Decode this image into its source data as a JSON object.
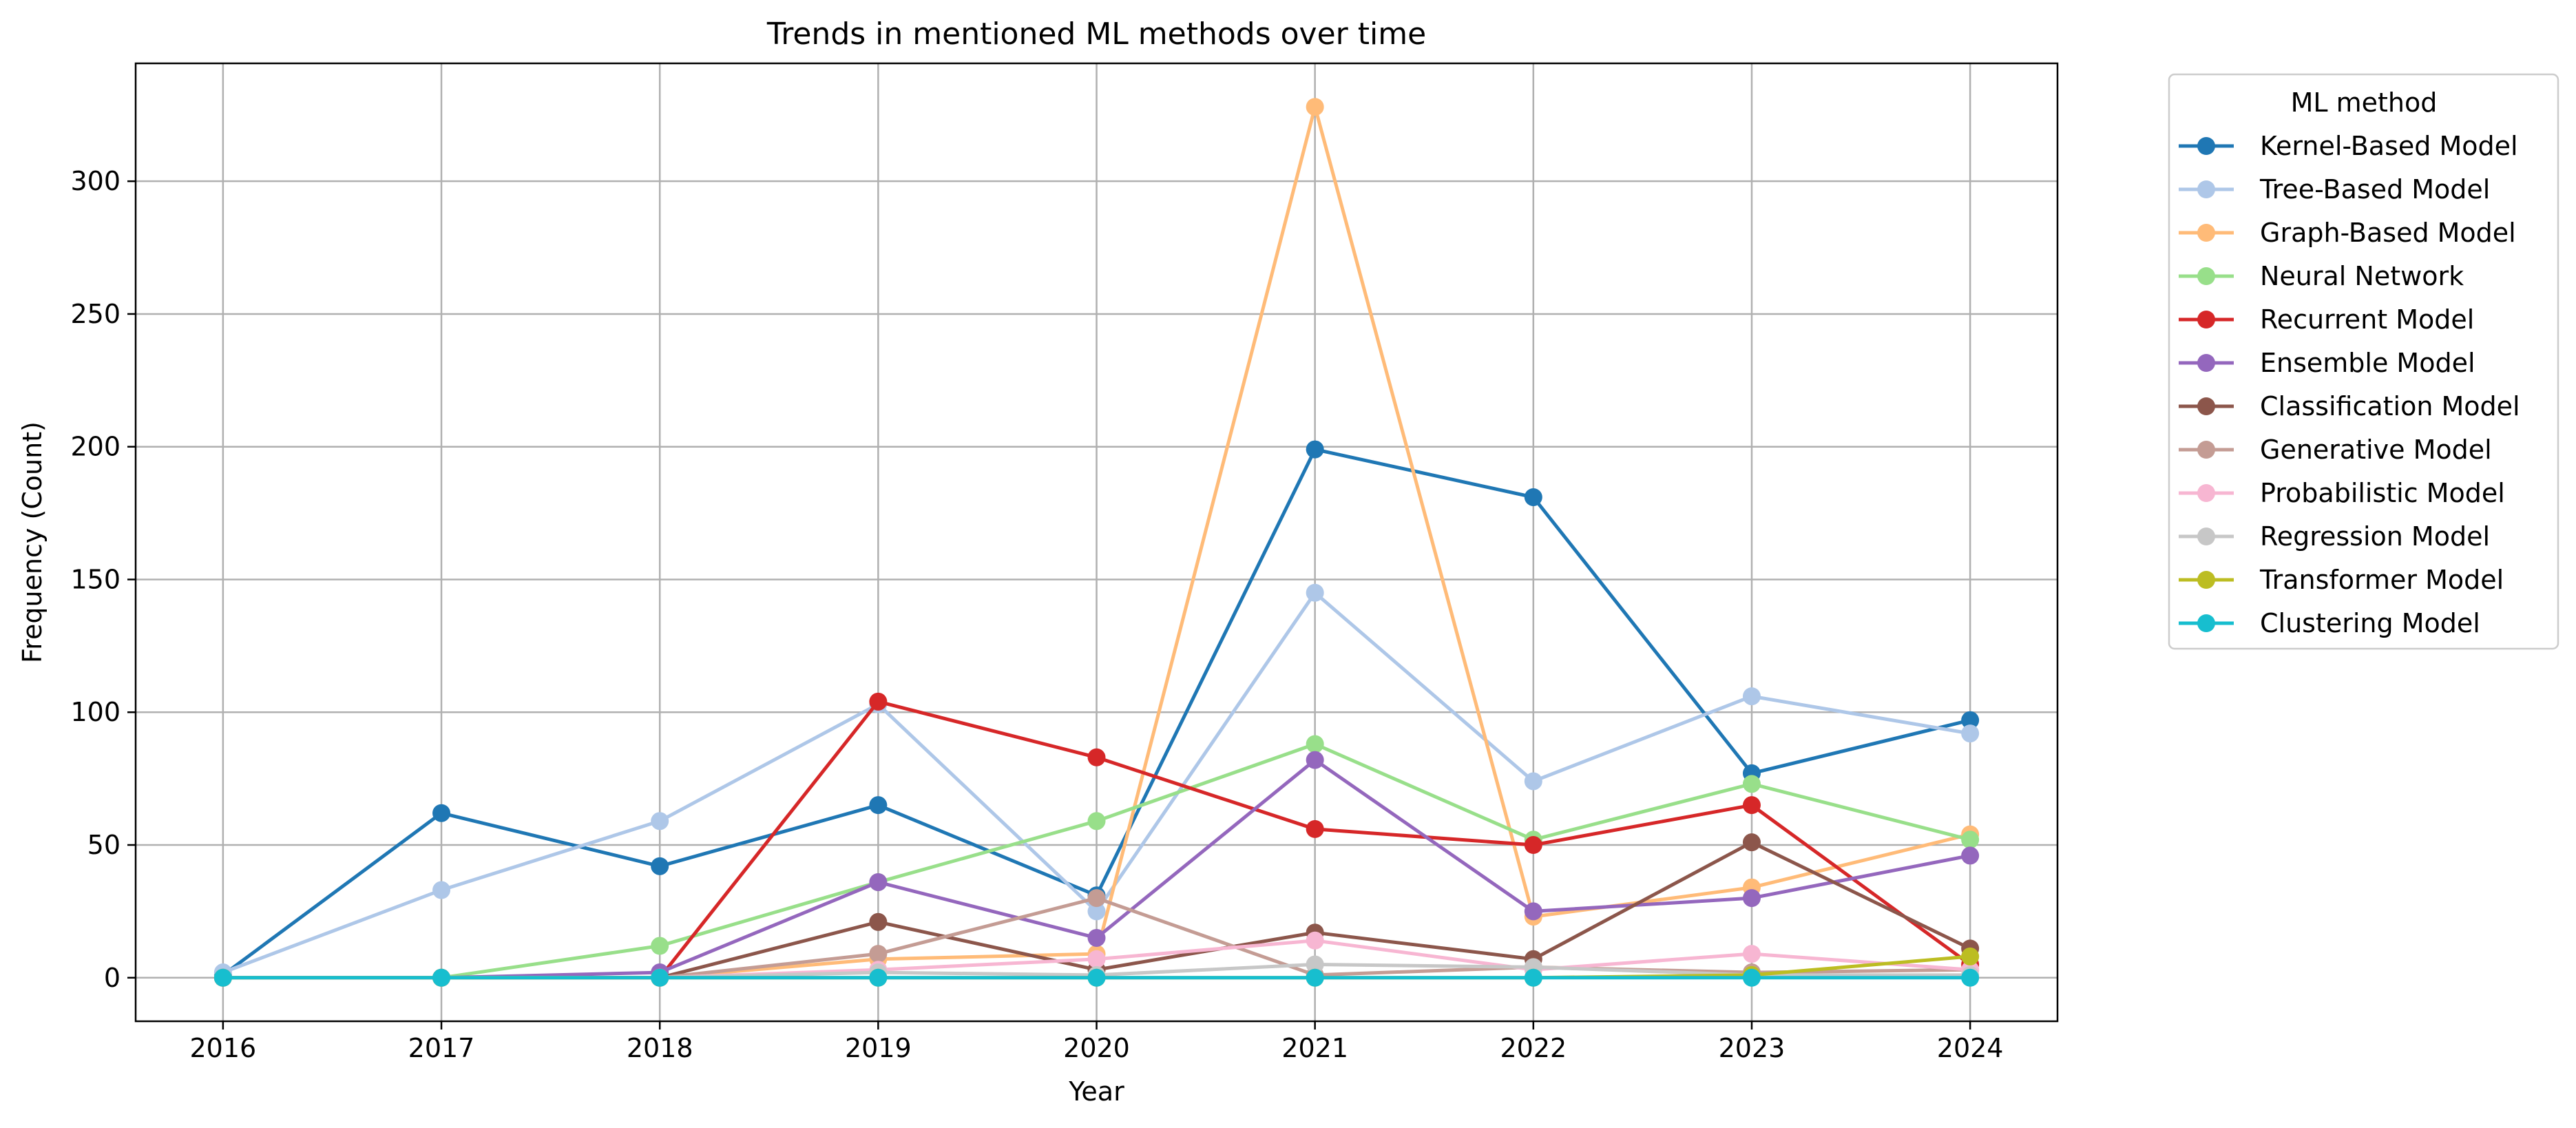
{
  "chart_data": {
    "type": "line",
    "title": "Trends in mentioned ML methods over time",
    "xlabel": "Year",
    "ylabel": "Frequency (Count)",
    "x": [
      2016,
      2017,
      2018,
      2019,
      2020,
      2021,
      2022,
      2023,
      2024
    ],
    "xlim": [
      2015.6,
      2024.4
    ],
    "ylim": [
      -16.4,
      344.4
    ],
    "yticks": [
      0,
      50,
      100,
      150,
      200,
      250,
      300
    ],
    "grid": true,
    "legend_title": "ML method",
    "legend_placement": "outside-right",
    "series": [
      {
        "name": "Kernel-Based Model",
        "color": "#1f77b4",
        "values": [
          1,
          62,
          42,
          65,
          31,
          199,
          181,
          77,
          97
        ]
      },
      {
        "name": "Tree-Based Model",
        "color": "#aec7e8",
        "values": [
          2,
          33,
          59,
          103,
          25,
          145,
          74,
          106,
          92
        ]
      },
      {
        "name": "Graph-Based Model",
        "color": "#ffbb78",
        "values": [
          0,
          0,
          0,
          7,
          9,
          328,
          23,
          34,
          54
        ]
      },
      {
        "name": "Neural Network",
        "color": "#98df8a",
        "values": [
          0,
          0,
          12,
          36,
          59,
          88,
          52,
          73,
          52
        ]
      },
      {
        "name": "Recurrent Model",
        "color": "#d62728",
        "values": [
          0,
          0,
          0,
          104,
          83,
          56,
          50,
          65,
          5
        ]
      },
      {
        "name": "Ensemble Model",
        "color": "#9467bd",
        "values": [
          0,
          0,
          2,
          36,
          15,
          82,
          25,
          30,
          46
        ]
      },
      {
        "name": "Classification Model",
        "color": "#8c564b",
        "values": [
          0,
          0,
          0,
          21,
          3,
          17,
          7,
          51,
          11
        ]
      },
      {
        "name": "Generative Model",
        "color": "#c49c94",
        "values": [
          0,
          0,
          0,
          9,
          30,
          1,
          4,
          2,
          3
        ]
      },
      {
        "name": "Probabilistic Model",
        "color": "#f7b6d2",
        "values": [
          0,
          0,
          0,
          3,
          7,
          14,
          3,
          9,
          3
        ]
      },
      {
        "name": "Regression Model",
        "color": "#c7c7c7",
        "values": [
          0,
          0,
          0,
          2,
          1,
          5,
          4,
          1,
          1
        ]
      },
      {
        "name": "Transformer Model",
        "color": "#bcbd22",
        "values": [
          0,
          0,
          0,
          0,
          0,
          0,
          0,
          1,
          8
        ]
      },
      {
        "name": "Clustering Model",
        "color": "#17becf",
        "values": [
          0,
          0,
          0,
          0,
          0,
          0,
          0,
          0,
          0
        ]
      }
    ]
  }
}
